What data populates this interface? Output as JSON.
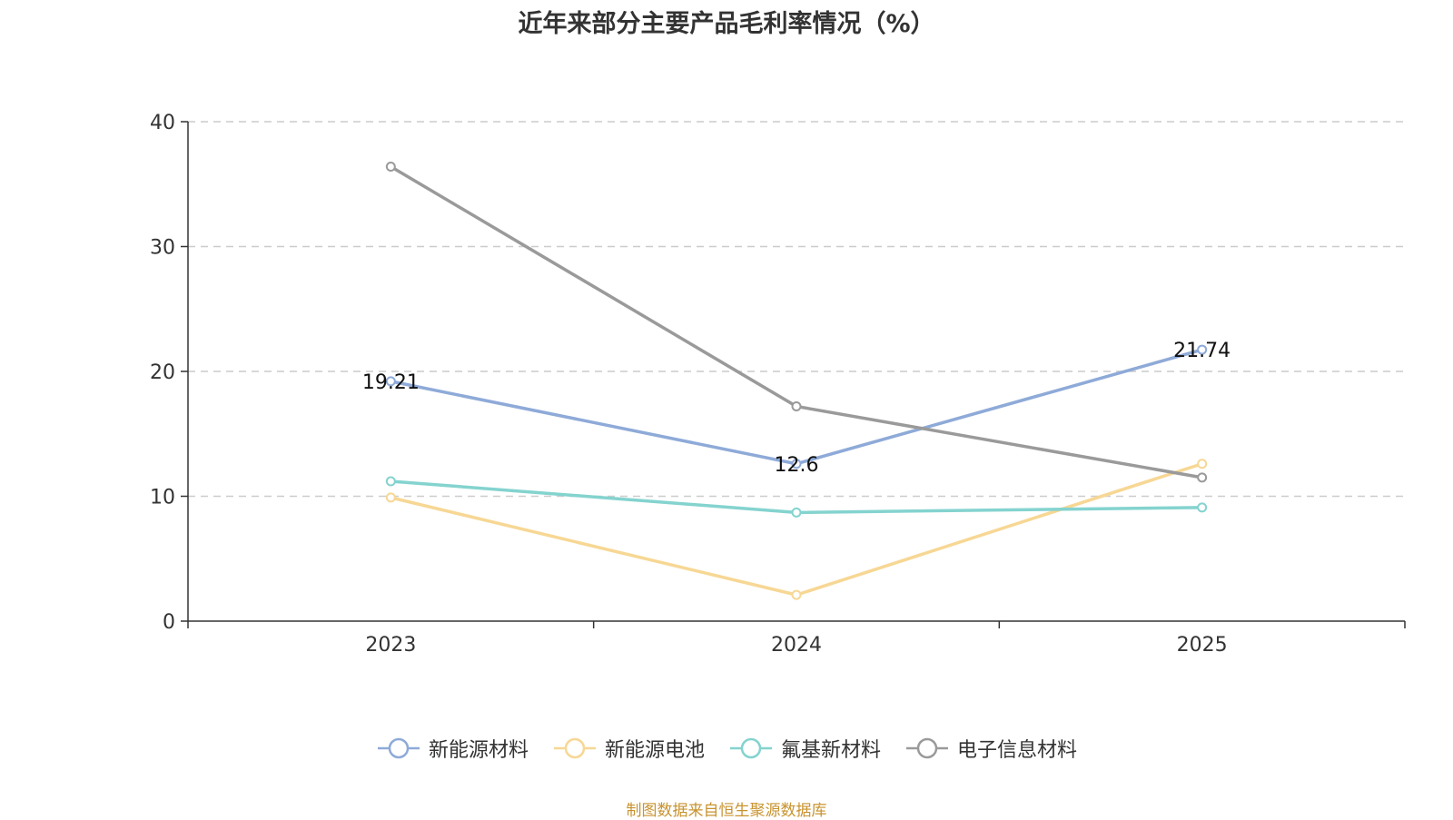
{
  "chart_data": {
    "type": "line",
    "title": "近年来部分主要产品毛利率情况（%）",
    "categories": [
      "2023",
      "2024",
      "2025"
    ],
    "ylim": [
      0,
      40
    ],
    "yticks": [
      0,
      10,
      20,
      30,
      40
    ],
    "grid": "horizontal dashed",
    "legend_position": "bottom",
    "series": [
      {
        "name": "新能源材料",
        "color": "#8eaad8",
        "values": [
          19.21,
          12.6,
          21.74
        ],
        "labels": [
          "19.21",
          "12.6",
          "21.74"
        ]
      },
      {
        "name": "新能源电池",
        "color": "#f7d794",
        "values": [
          9.9,
          2.1,
          12.6
        ],
        "labels": null
      },
      {
        "name": "氟基新材料",
        "color": "#84d3cf",
        "values": [
          11.2,
          8.7,
          9.1
        ],
        "labels": null
      },
      {
        "name": "电子信息材料",
        "color": "#9a9a9a",
        "values": [
          36.4,
          17.2,
          11.5
        ],
        "labels": null
      }
    ]
  },
  "source_note": "制图数据来自恒生聚源数据库"
}
